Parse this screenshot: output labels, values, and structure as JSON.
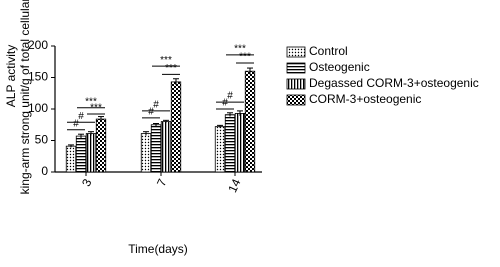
{
  "chart_data": {
    "type": "bar",
    "y_label_lines": [
      "ALP activity",
      "king-arm strong unit/g of total cellular protein"
    ],
    "x_label": "Time(days)",
    "categories": [
      "3",
      "7",
      "14"
    ],
    "series": [
      {
        "name": "Control",
        "color": "#000000",
        "pattern": "dots",
        "values": [
          41,
          61,
          72
        ],
        "errors": [
          2,
          3,
          2
        ]
      },
      {
        "name": "Osteogenic",
        "color": "#000000",
        "pattern": "horizontal",
        "values": [
          57,
          75,
          91
        ],
        "errors": [
          3,
          2,
          3
        ]
      },
      {
        "name": "Degassed CORM-3+osteogenic",
        "color": "#000000",
        "pattern": "vertical",
        "values": [
          61,
          80,
          93
        ],
        "errors": [
          3,
          2,
          4
        ]
      },
      {
        "name": "CORM-3+osteogenic",
        "color": "#000000",
        "pattern": "checker",
        "values": [
          84,
          143,
          160
        ],
        "errors": [
          4,
          5,
          5
        ]
      }
    ],
    "annotations": [
      "#",
      "#",
      "***",
      "***",
      "#",
      "#",
      "***",
      "***",
      "#",
      "#",
      "***",
      "***"
    ],
    "ylim": [
      0,
      200
    ],
    "yticks": [
      0,
      50,
      100,
      150,
      200
    ],
    "grid": false
  }
}
